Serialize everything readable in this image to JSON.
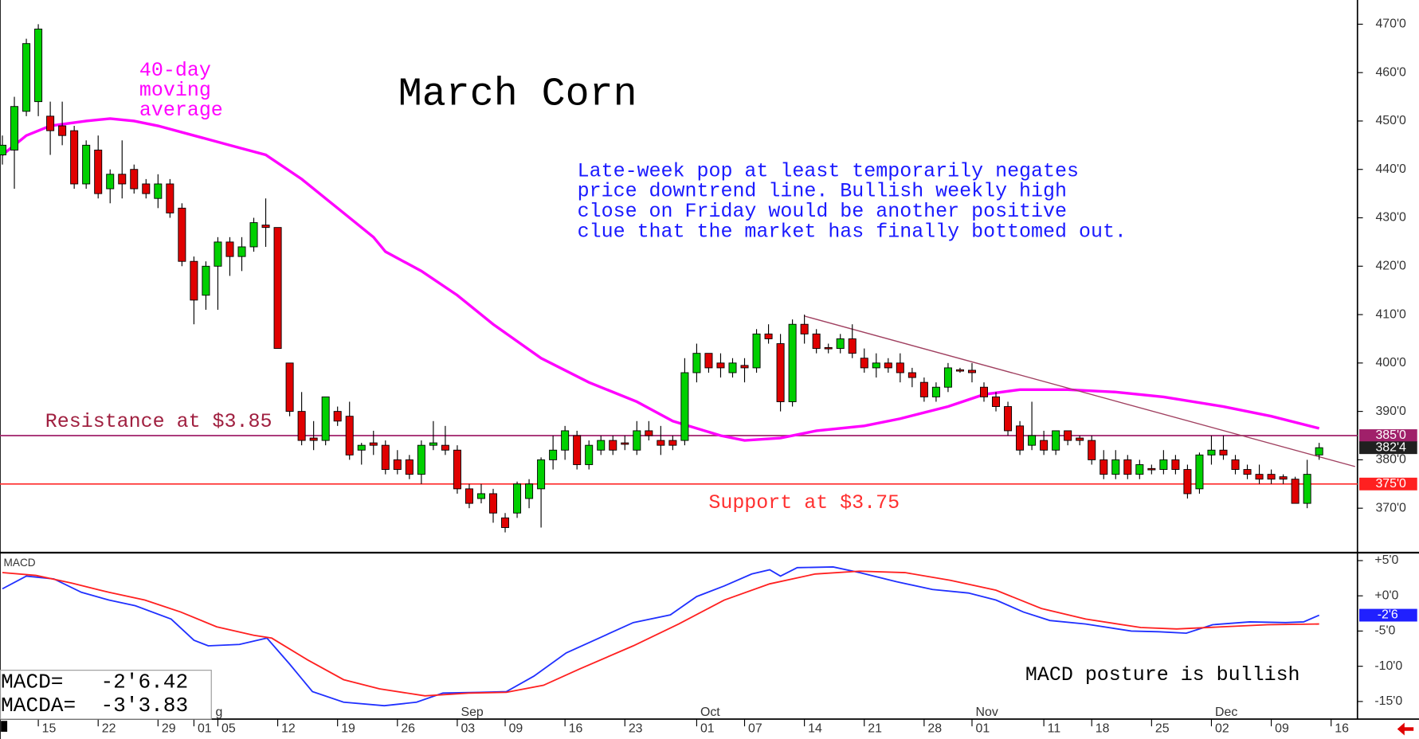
{
  "chart_data": [
    {
      "type": "candlestick",
      "title": "March Corn",
      "annotation": [
        "Late-week pop at least temporarily negates",
        "price downtrend line. Bullish weekly high",
        "close on Friday would be another positive",
        "clue that the market has finally bottomed out."
      ],
      "ma_label": [
        "40-day",
        "moving",
        "average"
      ],
      "xlim": [
        -0.2,
        113.2
      ],
      "ylim": [
        361,
        475
      ],
      "yticks": [
        {
          "value": 470,
          "label": "470'0"
        },
        {
          "value": 460,
          "label": "460'0"
        },
        {
          "value": 450,
          "label": "450'0"
        },
        {
          "value": 440,
          "label": "440'0"
        },
        {
          "value": 430,
          "label": "430'0"
        },
        {
          "value": 420,
          "label": "420'0"
        },
        {
          "value": 410,
          "label": "410'0"
        },
        {
          "value": 400,
          "label": "400'0"
        },
        {
          "value": 390,
          "label": "390'0"
        },
        {
          "value": 380,
          "label": "380'0"
        },
        {
          "value": 370,
          "label": "370'0"
        }
      ],
      "up_color": "#00d000",
      "down_color": "#e00000",
      "open": [
        443,
        444,
        452,
        454,
        451,
        449,
        448,
        437,
        444,
        436,
        439,
        440,
        437,
        434,
        437,
        432,
        421,
        414,
        420,
        425,
        422,
        424,
        428.5,
        428,
        400,
        390,
        384.5,
        384,
        390,
        389,
        382,
        383.5,
        383,
        380,
        380,
        377,
        383,
        383,
        382,
        374,
        372,
        373,
        368,
        369,
        372,
        374,
        380,
        382,
        385,
        379,
        382,
        384,
        383.5,
        382,
        386,
        384,
        384,
        384,
        398,
        402,
        400,
        398,
        399.5,
        399,
        406,
        404,
        392,
        408,
        406,
        403.2,
        403,
        405,
        401,
        399,
        400,
        400,
        398,
        396,
        393,
        395,
        398.6,
        398.5,
        395,
        393,
        391,
        387,
        383,
        384,
        382,
        386,
        384.5,
        384,
        380,
        377,
        380,
        377,
        378.2,
        378,
        380,
        378,
        374,
        381,
        382,
        380,
        378,
        377,
        377,
        376.5,
        376,
        371,
        381
      ],
      "high": [
        447,
        455,
        467,
        470,
        454,
        454,
        449,
        446,
        447,
        440,
        446,
        441,
        438,
        439,
        438,
        433,
        422,
        421,
        426,
        426,
        426,
        430,
        434,
        428,
        400,
        394,
        388,
        393,
        391,
        392,
        383.5,
        386,
        384,
        382,
        381,
        384,
        388,
        387,
        383,
        375,
        375,
        374,
        369,
        375.5,
        376,
        380.5,
        385,
        387,
        386,
        384,
        385,
        385,
        385,
        388,
        388,
        387,
        385,
        401,
        404,
        402,
        402,
        401,
        401,
        407,
        408,
        406,
        409,
        410,
        407,
        404,
        406,
        408,
        403,
        402,
        401,
        402,
        399,
        397,
        396,
        400,
        399,
        400,
        396,
        394,
        392,
        388,
        392,
        386,
        386,
        386,
        385,
        385,
        382,
        382,
        381,
        380,
        379,
        382,
        381,
        379,
        381.5,
        385,
        385,
        381,
        379,
        379,
        378,
        377,
        376.5,
        380,
        383.5
      ],
      "low": [
        441,
        436,
        451,
        451,
        443,
        445,
        436,
        436,
        434,
        433,
        434,
        435,
        434,
        432,
        430,
        420,
        408,
        411,
        411,
        418,
        419,
        423,
        424,
        403,
        389,
        383,
        382,
        383,
        387,
        380,
        379,
        381,
        377,
        377,
        376,
        375,
        382,
        381,
        373,
        370,
        371,
        367,
        365,
        368,
        370,
        366,
        378,
        380,
        378,
        378,
        381,
        381,
        382,
        381,
        384,
        381,
        382,
        383,
        396,
        398,
        397,
        397,
        396,
        398,
        404,
        390,
        391,
        404,
        402,
        402,
        402,
        401,
        398,
        397,
        398,
        396,
        395,
        392,
        392,
        394,
        398,
        396,
        392,
        390,
        385,
        381,
        382,
        381,
        381,
        383,
        383,
        379,
        376,
        376,
        376,
        376,
        377,
        377,
        377,
        372,
        373,
        379,
        380,
        377,
        376,
        375,
        375,
        375,
        371,
        370,
        380
      ],
      "close": [
        445,
        453,
        466,
        469,
        448,
        447,
        437,
        445,
        435,
        439,
        437,
        436,
        435,
        437,
        431,
        421,
        413,
        420,
        425,
        422,
        424,
        429,
        428,
        403,
        390,
        384,
        384,
        393,
        388,
        381,
        383,
        383,
        378,
        378,
        377,
        383,
        383.5,
        382,
        374,
        371,
        373,
        369,
        366,
        375,
        375,
        380,
        382,
        386,
        379,
        383,
        384,
        382,
        383.2,
        386,
        385,
        383,
        383,
        398,
        402,
        399,
        399,
        400,
        399,
        406,
        405,
        392,
        408,
        406,
        403,
        403,
        405,
        402,
        399,
        400,
        399,
        398,
        397,
        393,
        395,
        399,
        398.4,
        398,
        393,
        391,
        386,
        382,
        385,
        382,
        386,
        384,
        384,
        380,
        377,
        380,
        377,
        379,
        378,
        380,
        378,
        373,
        381,
        382,
        381,
        378,
        377,
        376,
        376,
        376,
        371,
        377,
        382.5
      ],
      "moving_average": {
        "color": "#ff00ff",
        "x": [
          0,
          2,
          4,
          7,
          9,
          11,
          13,
          16,
          19,
          22,
          25,
          28,
          31,
          32,
          35,
          38,
          41,
          45,
          49,
          53,
          56,
          60,
          62,
          65,
          68,
          72,
          75,
          79,
          82,
          85,
          89,
          93,
          97,
          102,
          106,
          110
        ],
        "values": [
          443,
          447,
          449,
          450,
          450.5,
          450,
          449,
          447,
          445,
          443,
          438,
          432,
          426,
          423,
          419,
          414,
          408,
          401,
          396,
          392,
          388,
          385,
          384,
          384.5,
          386,
          387,
          388.5,
          391,
          393.5,
          394.5,
          394.5,
          394,
          393,
          391,
          389,
          386.5
        ]
      },
      "levels": [
        {
          "label": "Resistance at $3.85",
          "value": 385,
          "color": "#a0206a"
        },
        {
          "label": "Support at $3.75",
          "value": 375,
          "color": "#ff3030"
        }
      ],
      "trendline": {
        "color": "#a04060",
        "x": [
          67,
          113
        ],
        "values": [
          409.7,
          378.6
        ]
      },
      "price_markers": [
        {
          "value": 385,
          "label": "385'0",
          "color": "#a0206a"
        },
        {
          "value": 382.5,
          "label": "382'4",
          "color": "#202020"
        },
        {
          "value": 375,
          "label": "375'0",
          "color": "#ff2020"
        }
      ]
    },
    {
      "type": "line",
      "title": "MACD",
      "readout": [
        "MACD=   -2'6.42",
        "MACDA=  -3'3.83"
      ],
      "annotation": "MACD posture is bullish",
      "xlim": [
        -0.2,
        113.2
      ],
      "ylim": [
        -17.5,
        6
      ],
      "yticks": [
        {
          "value": 5,
          "label": "+5'0"
        },
        {
          "value": 0,
          "label": "+0'0"
        },
        {
          "value": -5,
          "label": "-5'0"
        },
        {
          "value": -10,
          "label": "-10'0"
        },
        {
          "value": -15,
          "label": "-15'0"
        }
      ],
      "xticks": [
        {
          "value": 3,
          "label": "15"
        },
        {
          "value": 8,
          "label": "22"
        },
        {
          "value": 13,
          "label": "29"
        },
        {
          "value": 16,
          "label": "01"
        },
        {
          "value": 18,
          "label": "05"
        },
        {
          "value": 23,
          "label": "12"
        },
        {
          "value": 28,
          "label": "19"
        },
        {
          "value": 33,
          "label": "26"
        },
        {
          "value": 38,
          "label": "03"
        },
        {
          "value": 42,
          "label": "09"
        },
        {
          "value": 47,
          "label": "16"
        },
        {
          "value": 52,
          "label": "23"
        },
        {
          "value": 58,
          "label": "01"
        },
        {
          "value": 62,
          "label": "07"
        },
        {
          "value": 67,
          "label": "14"
        },
        {
          "value": 72,
          "label": "21"
        },
        {
          "value": 77,
          "label": "28"
        },
        {
          "value": 81,
          "label": "01"
        },
        {
          "value": 87,
          "label": "11"
        },
        {
          "value": 91,
          "label": "18"
        },
        {
          "value": 96,
          "label": "25"
        },
        {
          "value": 101,
          "label": "02"
        },
        {
          "value": 106,
          "label": "09"
        },
        {
          "value": 111,
          "label": "16"
        }
      ],
      "month_labels": [
        {
          "value": 17.5,
          "label": "g"
        },
        {
          "value": 38,
          "label": "Sep"
        },
        {
          "value": 58,
          "label": "Oct"
        },
        {
          "value": 81,
          "label": "Nov"
        },
        {
          "value": 101,
          "label": "Dec"
        }
      ],
      "series": [
        {
          "color": "#2030ff",
          "x": [
            0,
            2,
            4.3,
            6.6,
            8.9,
            11.1,
            14.1,
            16,
            17.2,
            19.8,
            22.1,
            24,
            25.9,
            28.5,
            31.9,
            34.6,
            36.8,
            39.9,
            42.1,
            44.4,
            47.1,
            50.1,
            52.7,
            55.8,
            58,
            60.3,
            62.6,
            64.1,
            65,
            66.4,
            69.4,
            71.6,
            74.7,
            77.7,
            80.7,
            83,
            85.3,
            87.5,
            90.5,
            94.3,
            96.6,
            98.9,
            101.1,
            104.2,
            107.2,
            108.7,
            110
          ],
          "values": [
            1,
            2.8,
            2.4,
            0.5,
            -0.6,
            -1.4,
            -3.3,
            -6.3,
            -7.1,
            -6.9,
            -6,
            -9.7,
            -13.6,
            -15.1,
            -15.6,
            -15.1,
            -13.8,
            -13.7,
            -13.6,
            -11.4,
            -8.1,
            -5.8,
            -3.8,
            -2.7,
            -0.1,
            1.4,
            3.1,
            3.7,
            2.8,
            4,
            4.1,
            3.3,
            2,
            0.9,
            0.4,
            -0.6,
            -2.3,
            -3.5,
            -4,
            -5,
            -5.1,
            -5.3,
            -4.1,
            -3.7,
            -3.8,
            -3.7,
            -2.75
          ]
        },
        {
          "color": "#ff2020",
          "x": [
            0,
            2.8,
            5.8,
            8.9,
            11.9,
            14.9,
            17.9,
            21,
            22.5,
            25.5,
            28.5,
            31.5,
            35.3,
            39.1,
            42.1,
            45.2,
            48.2,
            52.7,
            56.5,
            60.3,
            64.1,
            67.9,
            71.6,
            75.4,
            79.2,
            83,
            86.8,
            90.5,
            95.1,
            98.1,
            101.9,
            105.7,
            110
          ],
          "values": [
            3.3,
            2.9,
            1.8,
            0.5,
            -0.6,
            -2.3,
            -4.4,
            -5.6,
            -6,
            -9.1,
            -11.9,
            -13.2,
            -14.2,
            -13.8,
            -13.7,
            -12.7,
            -10.4,
            -7.1,
            -4,
            -0.6,
            1.7,
            3.1,
            3.5,
            3.3,
            2.2,
            0.8,
            -1.8,
            -3.3,
            -4.5,
            -4.7,
            -4.4,
            -4.1,
            -4
          ]
        }
      ],
      "markers": [
        {
          "value": -2.75,
          "label": "-2'6",
          "color": "#2020ff"
        }
      ]
    }
  ]
}
